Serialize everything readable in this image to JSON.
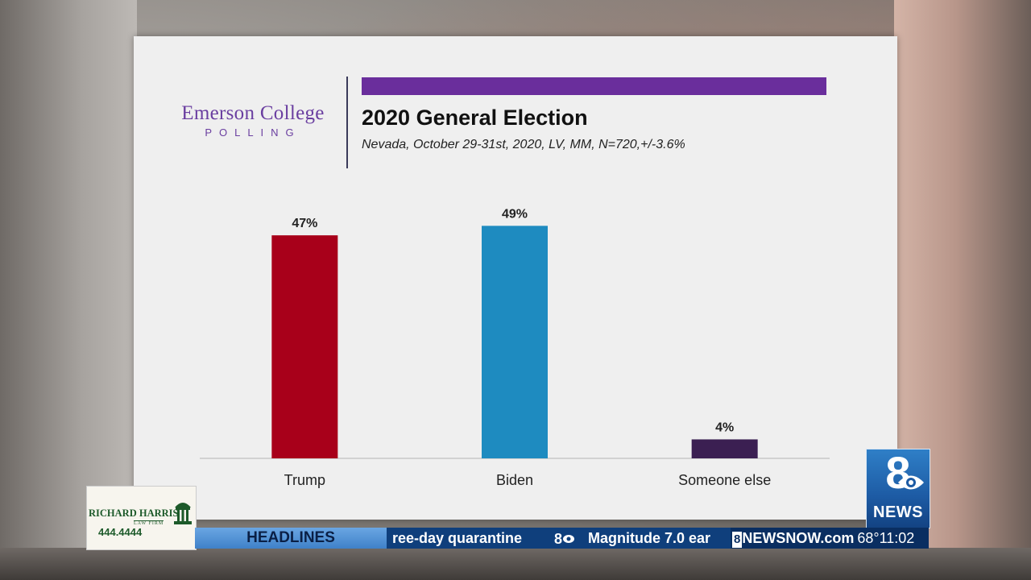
{
  "slide": {
    "logo_line1": "Emerson College",
    "logo_line2": "POLLING",
    "title": "2020 General Election",
    "subtitle": "Nevada, October 29-31st, 2020, LV, MM,  N=720,+/-3.6%"
  },
  "chart_data": {
    "type": "bar",
    "categories": [
      "Trump",
      "Biden",
      "Someone else"
    ],
    "values": [
      47,
      49,
      4
    ],
    "data_labels": [
      "47%",
      "49%",
      "4%"
    ],
    "colors": [
      "#a8001a",
      "#1e8bc0",
      "#3b1f52"
    ],
    "title": "2020 General Election",
    "ylim": [
      0,
      55
    ],
    "grid": false,
    "legend": "none"
  },
  "sponsor": {
    "name": "RICHARD HARRIS",
    "sub": "LAW FIRM",
    "phone": "444.4444",
    "icon": "building-icon"
  },
  "station": {
    "logo_number": "8",
    "logo_text": "NEWS",
    "logo_icon": "cbs-eye-icon"
  },
  "ticker": {
    "label": "HEADLINES",
    "text1": "ree-day quarantine",
    "text2": "Magnitude 7.0 ear",
    "sep_icon": "8-cbs-icon",
    "site_badge": "8",
    "site": "NEWSNOW.com",
    "temperature": "68°",
    "time": "11:02"
  }
}
